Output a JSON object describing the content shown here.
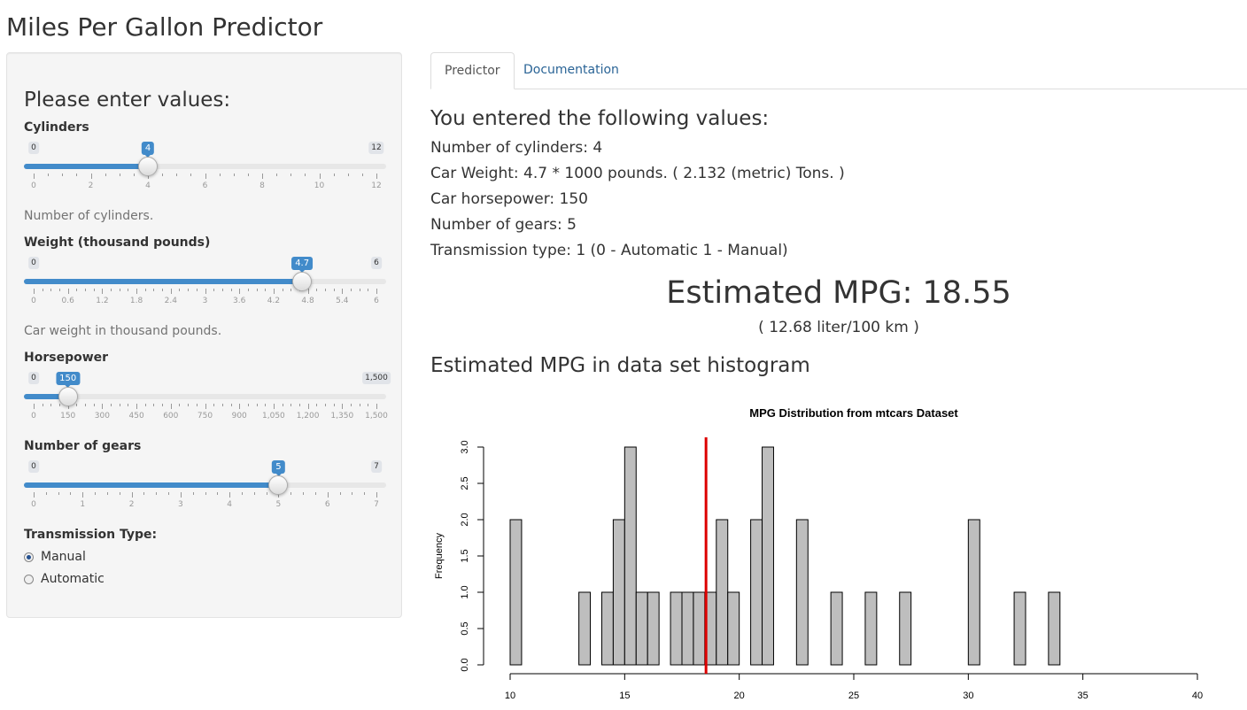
{
  "app": {
    "title": "Miles Per Gallon Predictor"
  },
  "sidebar": {
    "heading": "Please enter values:",
    "cylinders": {
      "label": "Cylinders",
      "min_label": "0",
      "max_label": "12",
      "value_label": "4",
      "value": 4,
      "min": 0,
      "max": 12,
      "ticks": [
        "0",
        "2",
        "4",
        "6",
        "8",
        "10",
        "12"
      ],
      "help": "Number of cylinders."
    },
    "weight": {
      "label": "Weight (thousand pounds)",
      "min_label": "0",
      "max_label": "6",
      "value_label": "4.7",
      "value": 4.7,
      "min": 0,
      "max": 6,
      "ticks": [
        "0",
        "0.6",
        "1.2",
        "1.8",
        "2.4",
        "3",
        "3.6",
        "4.2",
        "4.8",
        "5.4",
        "6"
      ],
      "help": "Car weight in thousand pounds."
    },
    "horsepower": {
      "label": "Horsepower",
      "min_label": "0",
      "max_label": "1,500",
      "value_label": "150",
      "value": 150,
      "min": 0,
      "max": 1500,
      "ticks": [
        "0",
        "150",
        "300",
        "450",
        "600",
        "750",
        "900",
        "1,050",
        "1,200",
        "1,350",
        "1,500"
      ]
    },
    "gears": {
      "label": "Number of gears",
      "min_label": "0",
      "max_label": "7",
      "value_label": "5",
      "value": 5,
      "min": 0,
      "max": 7,
      "ticks": [
        "0",
        "1",
        "2",
        "3",
        "4",
        "5",
        "6",
        "7"
      ]
    },
    "transmission": {
      "label": "Transmission Type:",
      "options": [
        "Manual",
        "Automatic"
      ],
      "selected": "Manual"
    }
  },
  "tabs": [
    {
      "label": "Predictor",
      "active": true
    },
    {
      "label": "Documentation",
      "active": false
    }
  ],
  "main": {
    "entered_heading": "You entered the following values:",
    "lines": [
      "Number of cylinders: 4",
      "Car Weight: 4.7 * 1000 pounds. ( 2.132 (metric) Tons. )",
      "Car horsepower: 150",
      "Number of gears: 5",
      "Transmission type: 1 (0 - Automatic 1 - Manual)"
    ],
    "estimate": "Estimated MPG: 18.55",
    "estimate_metric": "( 12.68 liter/100 km )",
    "histogram_heading": "Estimated MPG in data set histogram"
  },
  "colors": {
    "accent": "#428bca",
    "bar_fill": "#bebebe",
    "marker": "#dd0000",
    "link": "#2a6496"
  },
  "chart_data": {
    "type": "bar",
    "title": "MPG Distribution from mtcars Dataset",
    "xlabel": "",
    "ylabel": "Frequency",
    "xlim": [
      10,
      40
    ],
    "ylim": [
      0,
      3
    ],
    "bin_width": 0.5,
    "bins": [
      {
        "x0": 10.0,
        "x1": 10.5,
        "count": 2
      },
      {
        "x0": 13.0,
        "x1": 13.5,
        "count": 1
      },
      {
        "x0": 14.0,
        "x1": 14.5,
        "count": 1
      },
      {
        "x0": 14.5,
        "x1": 15.0,
        "count": 2
      },
      {
        "x0": 15.0,
        "x1": 15.5,
        "count": 3
      },
      {
        "x0": 15.5,
        "x1": 16.0,
        "count": 1
      },
      {
        "x0": 16.0,
        "x1": 16.5,
        "count": 1
      },
      {
        "x0": 17.0,
        "x1": 17.5,
        "count": 1
      },
      {
        "x0": 17.5,
        "x1": 18.0,
        "count": 1
      },
      {
        "x0": 18.0,
        "x1": 18.5,
        "count": 1
      },
      {
        "x0": 18.5,
        "x1": 19.0,
        "count": 1
      },
      {
        "x0": 19.0,
        "x1": 19.5,
        "count": 2
      },
      {
        "x0": 19.5,
        "x1": 20.0,
        "count": 1
      },
      {
        "x0": 20.5,
        "x1": 21.0,
        "count": 2
      },
      {
        "x0": 21.0,
        "x1": 21.5,
        "count": 3
      },
      {
        "x0": 22.5,
        "x1": 23.0,
        "count": 2
      },
      {
        "x0": 24.0,
        "x1": 24.5,
        "count": 1
      },
      {
        "x0": 25.5,
        "x1": 26.0,
        "count": 1
      },
      {
        "x0": 27.0,
        "x1": 27.5,
        "count": 1
      },
      {
        "x0": 30.0,
        "x1": 30.5,
        "count": 2
      },
      {
        "x0": 32.0,
        "x1": 32.5,
        "count": 1
      },
      {
        "x0": 33.5,
        "x1": 34.0,
        "count": 1
      }
    ],
    "x_ticks": [
      "10",
      "15",
      "20",
      "25",
      "30",
      "35",
      "40"
    ],
    "y_ticks": [
      "0.0",
      "0.5",
      "1.0",
      "1.5",
      "2.0",
      "2.5",
      "3.0"
    ],
    "marker_line": 18.55
  }
}
